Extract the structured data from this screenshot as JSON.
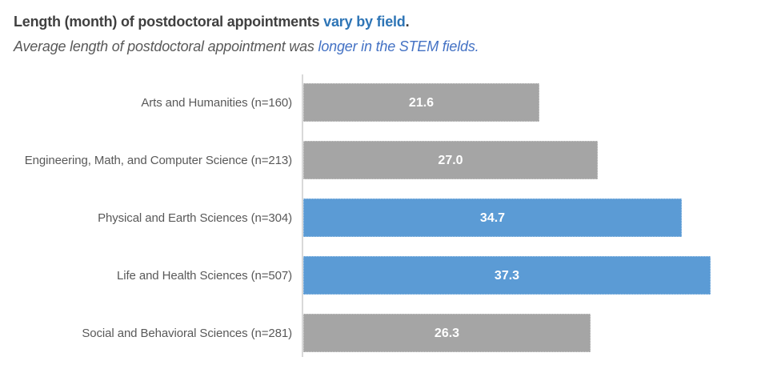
{
  "title": {
    "main": "Length (month) of postdoctoral appointments ",
    "accent": "vary by field",
    "end": "."
  },
  "subtitle": {
    "main": "Average length of postdoctoral appointment was ",
    "accent": "longer in the STEM fields."
  },
  "colors": {
    "title_text": "#404040",
    "title_accent": "#2E75B6",
    "subtitle_text": "#595959",
    "subtitle_accent": "#4472C4",
    "bar_gray": "#A5A5A5",
    "bar_blue": "#5B9BD5",
    "value_label_text": "#FFFFFF",
    "category_label_text": "#595959",
    "axis_line": "#D9D9D9"
  },
  "chart_data": {
    "type": "bar",
    "orientation": "horizontal",
    "title": "Length (month) of postdoctoral appointments vary by field.",
    "subtitle": "Average length of postdoctoral appointment was longer in the STEM fields.",
    "categories": [
      "Arts and Humanities (n=160)",
      "Engineering, Math, and Computer Science (n=213)",
      "Physical and Earth Sciences (n=304)",
      "Life and Health Sciences (n=507)",
      "Social and Behavioral Sciences (n=281)"
    ],
    "values": [
      21.6,
      27.0,
      34.7,
      37.3,
      26.3
    ],
    "value_labels": [
      "21.6",
      "27.0",
      "34.7",
      "37.3",
      "26.3"
    ],
    "bar_colors": [
      "#A5A5A5",
      "#A5A5A5",
      "#5B9BD5",
      "#5B9BD5",
      "#A5A5A5"
    ],
    "highlighted_categories": [
      "Physical and Earth Sciences (n=304)",
      "Life and Health Sciences (n=507)"
    ],
    "xlabel": "",
    "ylabel": "",
    "xlim": [
      0,
      42
    ],
    "grid": false,
    "legend": "none",
    "data_label_position": "center"
  }
}
